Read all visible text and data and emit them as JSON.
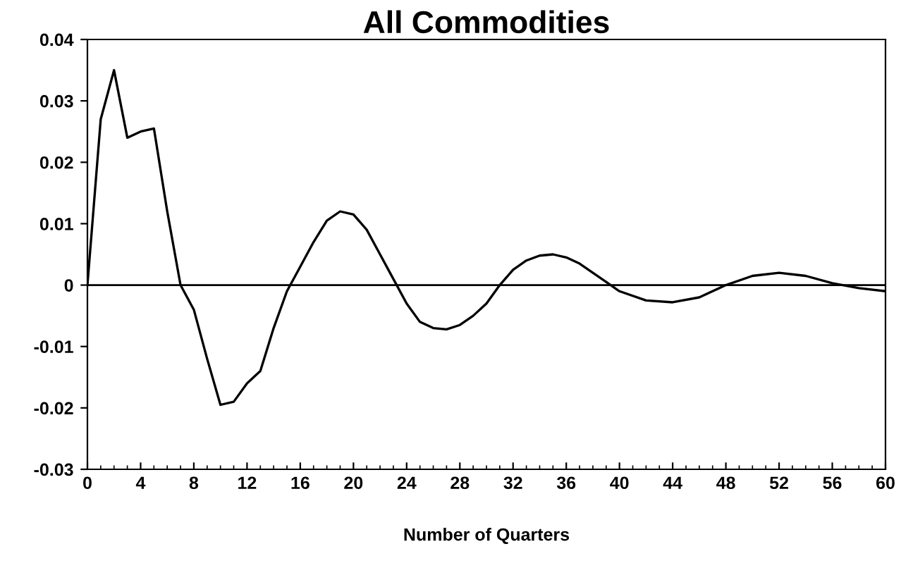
{
  "chart_data": {
    "type": "line",
    "title": "All Commodities",
    "xlabel": "Number of Quarters",
    "x": [
      0,
      1,
      2,
      3,
      4,
      5,
      6,
      7,
      8,
      9,
      10,
      11,
      12,
      13,
      14,
      15,
      16,
      17,
      18,
      19,
      20,
      21,
      22,
      23,
      24,
      25,
      26,
      27,
      28,
      29,
      30,
      31,
      32,
      33,
      34,
      35,
      36,
      37,
      38,
      39,
      40,
      42,
      44,
      46,
      48,
      50,
      52,
      54,
      56,
      58,
      60
    ],
    "series": [
      {
        "color": "#000000",
        "values": [
          0.0,
          0.027,
          0.035,
          0.024,
          0.025,
          0.0255,
          0.012,
          0.0,
          -0.004,
          -0.012,
          -0.0195,
          -0.019,
          -0.016,
          -0.014,
          -0.007,
          -0.001,
          0.003,
          0.007,
          0.0105,
          0.012,
          0.0115,
          0.009,
          0.005,
          0.001,
          -0.003,
          -0.006,
          -0.007,
          -0.0072,
          -0.0065,
          -0.005,
          -0.003,
          0.0,
          0.0025,
          0.004,
          0.0048,
          0.005,
          0.0045,
          0.0035,
          0.002,
          0.0005,
          -0.001,
          -0.0025,
          -0.0028,
          -0.002,
          0.0,
          0.0015,
          0.002,
          0.0015,
          0.0003,
          -0.0005,
          -0.001
        ]
      }
    ],
    "xlim": [
      0,
      60
    ],
    "xticks": [
      0,
      4,
      8,
      12,
      16,
      20,
      24,
      28,
      32,
      36,
      40,
      44,
      48,
      52,
      56,
      60
    ],
    "ylim": [
      -0.03,
      0.04
    ],
    "yticks": [
      {
        "value": -0.03,
        "label": "-0.03"
      },
      {
        "value": -0.02,
        "label": "-0.02"
      },
      {
        "value": -0.01,
        "label": "-0.01"
      },
      0,
      {
        "value": 0.01,
        "label": "0.01"
      },
      {
        "value": 0.02,
        "label": "0.02"
      },
      {
        "value": 0.03,
        "label": "0.03"
      },
      {
        "value": 0.04,
        "label": "0.04"
      }
    ],
    "ref_lines": [
      {
        "axis": "y",
        "value": 0,
        "color": "#000000"
      }
    ],
    "grid": false,
    "legend": false,
    "marker": "none",
    "line_style": "solid"
  }
}
